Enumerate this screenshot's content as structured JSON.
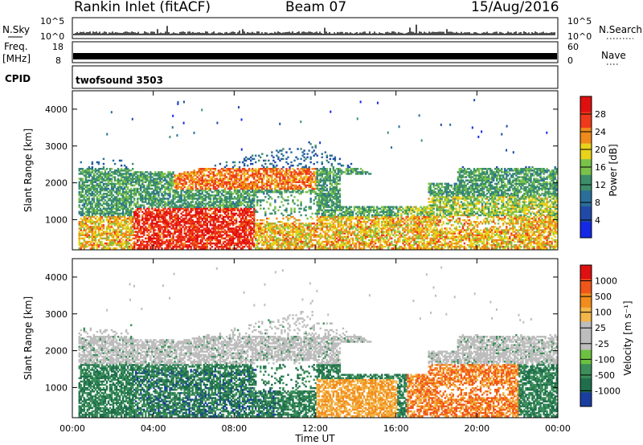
{
  "header": {
    "station": "Rankin Inlet (fitACF)",
    "beam": "Beam 07",
    "date": "15/Aug/2016"
  },
  "top_panels": {
    "nsky_label": "N.Sky",
    "nsky_ticks": [
      "10^5",
      "10^0"
    ],
    "nsearch_label": "N.Search",
    "nsearch_ticks": [
      "10^5",
      "10^0"
    ],
    "freq_label": "Freq.",
    "freq_unit": "[MHz]",
    "freq_ticks": [
      "18",
      "8"
    ],
    "nave_label": "Nave",
    "nave_ticks": [
      "60",
      "0"
    ],
    "cpid_label": "CPID",
    "cpid_value": "twofsound 3503"
  },
  "colors": {
    "power": [
      "#1428e6",
      "#1f4aa8",
      "#2a6e9a",
      "#3c8f6a",
      "#7ac24a",
      "#e8d21a",
      "#f08a1a",
      "#ee3a1a",
      "#e01010"
    ],
    "velocity": [
      "#e01010",
      "#f0551a",
      "#f28c1c",
      "#f2b64a",
      "#bdbdbd",
      "#bdbdbd",
      "#6cc240",
      "#3c8f5a",
      "#1f6e4c",
      "#1a3ea0"
    ]
  },
  "chart_data": [
    {
      "type": "heatmap",
      "title": "",
      "ylabel": "Slant Range [km]",
      "yticks": [
        "1000",
        "2000",
        "3000",
        "4000"
      ],
      "xticks": [
        "00:00",
        "04:00",
        "08:00",
        "12:00",
        "16:00",
        "20:00",
        "00:00"
      ],
      "xlim": [
        0,
        24
      ],
      "ylim": [
        180,
        4500
      ],
      "colorbar_label": "Power [dB]",
      "colorbar_ticks": [
        "28",
        "24",
        "20",
        "16",
        "12",
        "8",
        "4"
      ],
      "colorbar_range": [
        0,
        32
      ]
    },
    {
      "type": "heatmap",
      "title": "",
      "xlabel": "Time UT",
      "ylabel": "Slant Range [km]",
      "yticks": [
        "1000",
        "2000",
        "3000",
        "4000"
      ],
      "xticks": [
        "00:00",
        "04:00",
        "08:00",
        "12:00",
        "16:00",
        "20:00",
        "00:00"
      ],
      "xlim": [
        0,
        24
      ],
      "ylim": [
        180,
        4500
      ],
      "colorbar_label": "Velocity [m s⁻¹]",
      "colorbar_ticks": [
        "1000",
        "500",
        "100",
        "25",
        "-25",
        "-100",
        "-500",
        "-1000"
      ]
    }
  ]
}
